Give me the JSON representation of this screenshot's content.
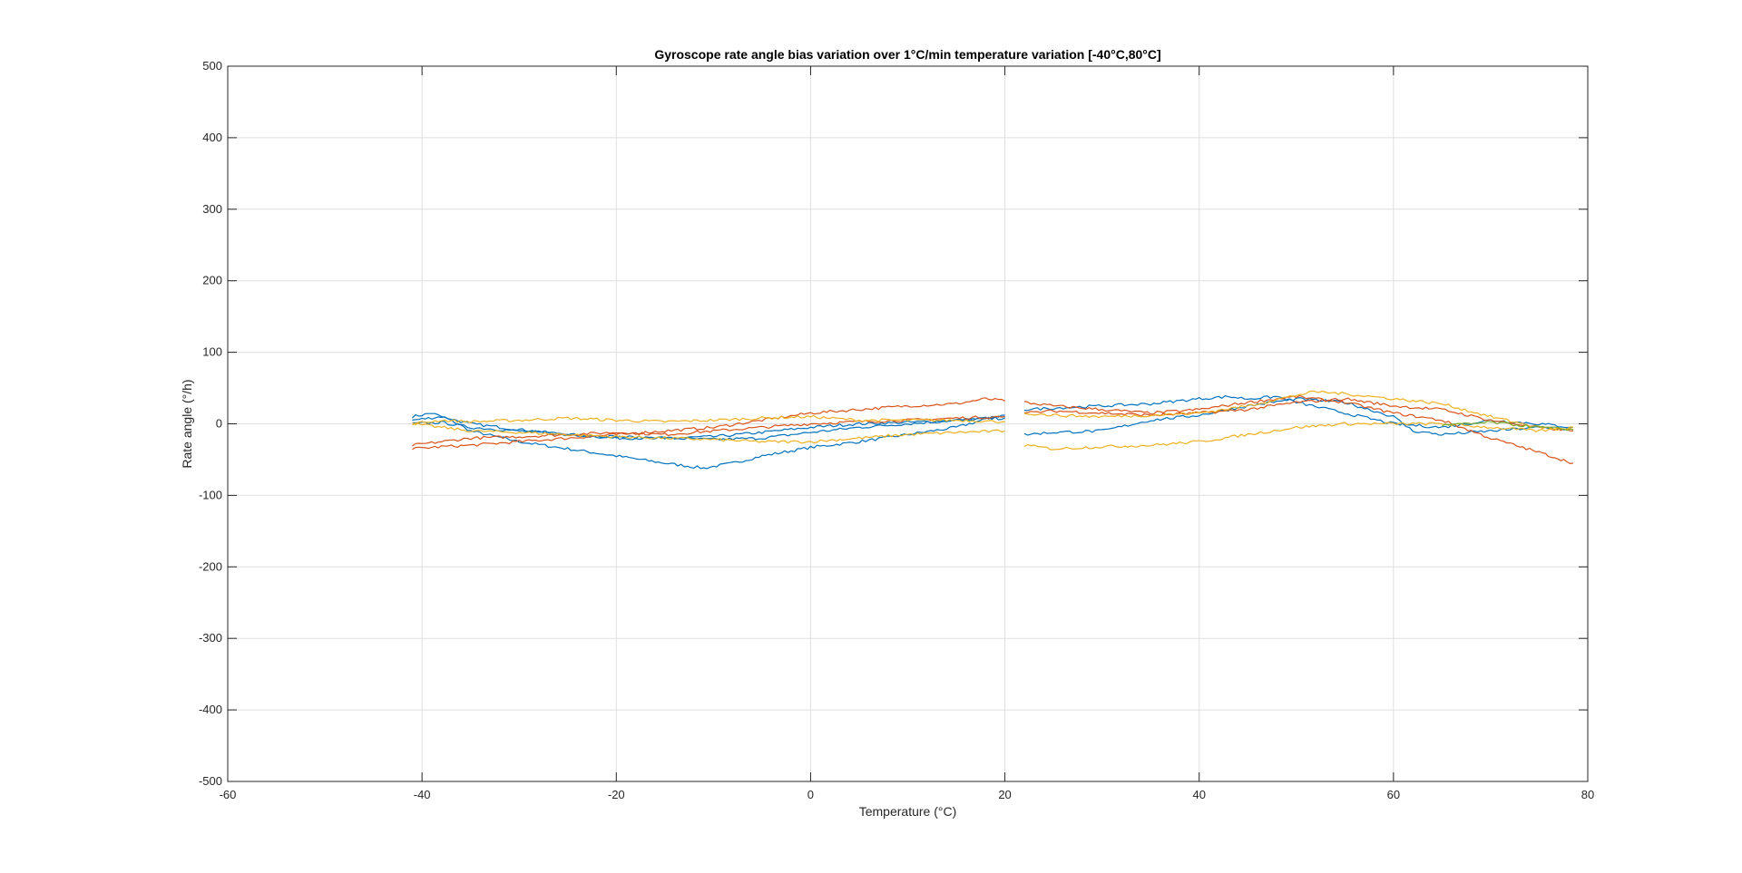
{
  "chart_data": {
    "type": "line",
    "title": "Gyroscope rate angle bias variation over 1°C/min temperature variation [-40°C,80°C]",
    "xlabel": "Temperature (°C)",
    "ylabel": "Rate angle (°/h)",
    "xlim": [
      -60,
      80
    ],
    "ylim": [
      -500,
      500
    ],
    "xticks": [
      -60,
      -40,
      -20,
      0,
      20,
      40,
      60,
      80
    ],
    "yticks": [
      -500,
      -400,
      -300,
      -200,
      -100,
      0,
      100,
      200,
      300,
      400,
      500
    ],
    "xtick_labels": [
      "-60",
      "-40",
      "-20",
      "0",
      "20",
      "40",
      "60",
      "80"
    ],
    "ytick_labels": [
      "-500",
      "-400",
      "-300",
      "-200",
      "-100",
      "0",
      "100",
      "200",
      "300",
      "400",
      "500"
    ],
    "grid": true,
    "legend": "none",
    "series": [
      {
        "color": "#0072BD",
        "x": [
          -41,
          -39,
          -37,
          -35,
          -30,
          -25,
          -20,
          -15,
          -11,
          -8,
          -5,
          0,
          5,
          10,
          15,
          19,
          20
        ],
        "y": [
          10,
          15,
          5,
          -10,
          -25,
          -35,
          -45,
          -55,
          -62,
          -55,
          -45,
          -33,
          -25,
          -15,
          -5,
          10,
          12
        ]
      },
      {
        "color": "#0072BD",
        "x": [
          -41,
          -38,
          -35,
          -30,
          -25,
          -20,
          -15,
          -10,
          -5,
          0,
          5,
          10,
          15,
          20
        ],
        "y": [
          5,
          10,
          0,
          -8,
          -15,
          -20,
          -20,
          -18,
          -12,
          -5,
          0,
          2,
          5,
          10
        ]
      },
      {
        "color": "#0072BD",
        "x": [
          -41,
          -38,
          -35,
          -30,
          -25,
          -20,
          -15,
          -10,
          -5,
          0,
          5,
          10,
          15,
          20
        ],
        "y": [
          0,
          2,
          -5,
          -10,
          -15,
          -18,
          -20,
          -22,
          -20,
          -12,
          -5,
          0,
          5,
          8
        ]
      },
      {
        "color": "#D95319",
        "x": [
          -41,
          -38,
          -35,
          -30,
          -25,
          -20,
          -15,
          -10,
          -5,
          0,
          5,
          10,
          15,
          18,
          20
        ],
        "y": [
          -35,
          -32,
          -30,
          -25,
          -20,
          -15,
          -10,
          -5,
          5,
          15,
          20,
          25,
          28,
          35,
          32
        ]
      },
      {
        "color": "#D95319",
        "x": [
          -41,
          -38,
          -35,
          -30,
          -25,
          -20,
          -15,
          -10,
          -5,
          0,
          5,
          10,
          15,
          20
        ],
        "y": [
          -30,
          -25,
          -20,
          -18,
          -15,
          -12,
          -15,
          -10,
          -5,
          0,
          3,
          5,
          8,
          10
        ]
      },
      {
        "color": "#EDB120",
        "x": [
          -41,
          -38,
          -35,
          -30,
          -25,
          -20,
          -15,
          -10,
          -5,
          0,
          5,
          10,
          15,
          20
        ],
        "y": [
          0,
          5,
          3,
          5,
          8,
          5,
          3,
          5,
          8,
          10,
          5,
          5,
          5,
          3
        ]
      },
      {
        "color": "#EDB120",
        "x": [
          -41,
          -38,
          -35,
          -30,
          -25,
          -20,
          -15,
          -10,
          -5,
          0,
          5,
          10,
          15,
          20
        ],
        "y": [
          0,
          -5,
          -10,
          -12,
          -15,
          -18,
          -20,
          -22,
          -25,
          -25,
          -20,
          -15,
          -12,
          -10
        ]
      },
      {
        "color": "#0072BD",
        "x": [
          22,
          25,
          30,
          35,
          40,
          43,
          45,
          48,
          50,
          55,
          60,
          65,
          70,
          75,
          78.5
        ],
        "y": [
          20,
          22,
          25,
          28,
          35,
          38,
          35,
          38,
          30,
          15,
          0,
          -5,
          5,
          0,
          -5
        ]
      },
      {
        "color": "#0072BD",
        "x": [
          22,
          25,
          30,
          35,
          40,
          45,
          50,
          55,
          60,
          62,
          65,
          70,
          75,
          78.5
        ],
        "y": [
          -15,
          -12,
          -10,
          5,
          12,
          25,
          35,
          30,
          10,
          -10,
          -15,
          -10,
          -5,
          -8
        ]
      },
      {
        "color": "#D95319",
        "x": [
          22,
          25,
          30,
          35,
          40,
          45,
          50,
          55,
          60,
          65,
          70,
          75,
          78.5
        ],
        "y": [
          30,
          25,
          20,
          15,
          20,
          30,
          38,
          30,
          15,
          5,
          -20,
          -40,
          -55
        ]
      },
      {
        "color": "#D95319",
        "x": [
          22,
          25,
          30,
          35,
          40,
          45,
          50,
          55,
          60,
          65,
          70,
          75,
          78.5
        ],
        "y": [
          15,
          18,
          15,
          12,
          15,
          20,
          30,
          35,
          25,
          20,
          5,
          -5,
          -10
        ]
      },
      {
        "color": "#EDB120",
        "x": [
          22,
          25,
          30,
          35,
          40,
          45,
          50,
          55,
          60,
          65,
          70,
          75,
          78.5
        ],
        "y": [
          -30,
          -35,
          -32,
          -30,
          -25,
          -15,
          -5,
          0,
          0,
          0,
          -5,
          -10,
          -5
        ]
      },
      {
        "color": "#EDB120",
        "x": [
          22,
          25,
          30,
          35,
          40,
          45,
          50,
          52,
          55,
          60,
          65,
          70,
          75,
          78.5
        ],
        "y": [
          15,
          12,
          10,
          12,
          15,
          25,
          40,
          45,
          42,
          35,
          28,
          10,
          -5,
          -8
        ]
      },
      {
        "color": "#77AC30",
        "x": [
          65,
          68,
          70,
          73,
          75,
          78.5
        ],
        "y": [
          -2,
          0,
          2,
          -2,
          -5,
          -8
        ]
      }
    ]
  }
}
